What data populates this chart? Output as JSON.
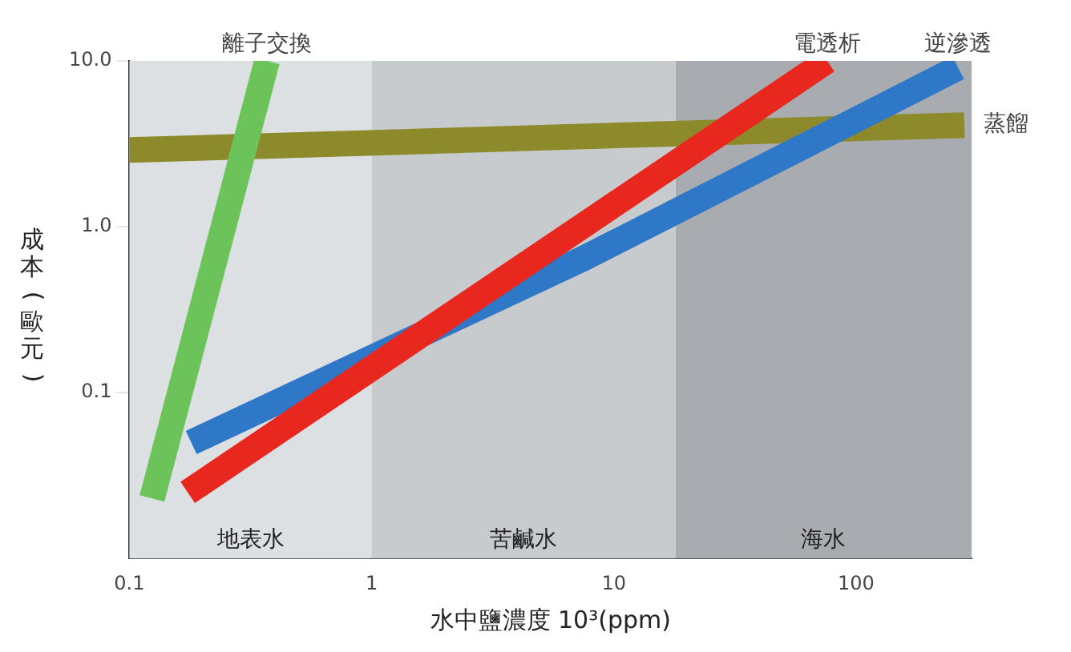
{
  "chart_data": {
    "type": "line",
    "xlabel": "水中鹽濃度 10³(ppm)",
    "ylabel": "成本(歐元)",
    "log": "xy",
    "xlim": [
      0.1,
      300
    ],
    "ylim": [
      0.01,
      10
    ],
    "xticks": [
      0.1,
      1,
      10,
      100
    ],
    "yticks": [
      {
        "value": 0.1,
        "label": "0.1"
      },
      {
        "value": 1,
        "label": "1.0"
      },
      {
        "value": 10,
        "label": "10.0"
      }
    ],
    "grid": false,
    "legend": false,
    "marker": "none",
    "line_style": "solid",
    "series": [
      {
        "name": "離子交換",
        "color": "#6cc35a",
        "x": [
          0.124,
          0.37
        ],
        "values": [
          0.023,
          10
        ]
      },
      {
        "name": "電透析",
        "color": "#e8281e",
        "x": [
          0.174,
          76
        ],
        "values": [
          0.025,
          10
        ]
      },
      {
        "name": "逆滲透",
        "color": "#2f78c8",
        "x": [
          0.18,
          7.6,
          264
        ],
        "values": [
          0.05,
          0.65,
          9.1
        ]
      },
      {
        "name": "蒸餾",
        "color": "#8c8a2a",
        "x": [
          0.1,
          280
        ],
        "values": [
          2.9,
          4.1
        ]
      }
    ],
    "bands": [
      {
        "axis": "x",
        "from": 0.1,
        "to": 1,
        "label": "地表水",
        "color": "#dde0e3"
      },
      {
        "axis": "x",
        "from": 1,
        "to": 18,
        "label": "苦鹹水",
        "color": "#c8cbce"
      },
      {
        "axis": "x",
        "from": 18,
        "to": 300,
        "label": "海水",
        "color": "#a8acb0"
      }
    ]
  }
}
